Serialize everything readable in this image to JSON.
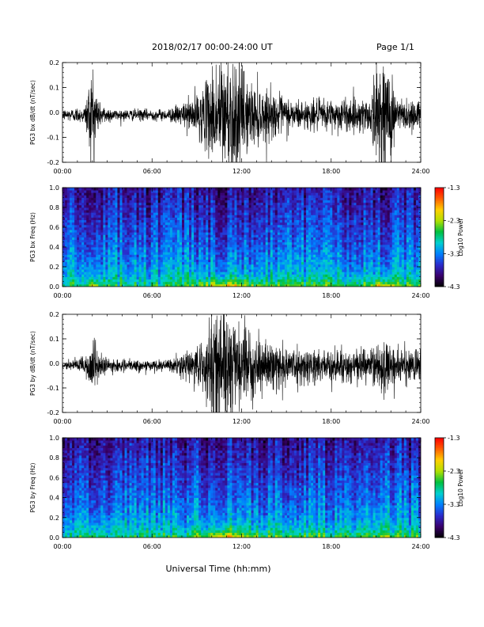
{
  "header": {
    "title": "2018/02/17   00:00-24:00 UT",
    "page": "Page 1/1"
  },
  "xlabel": "Universal Time (hh:mm)",
  "x_ticks": [
    "00:00",
    "06:00",
    "12:00",
    "18:00",
    "24:00"
  ],
  "colors": {
    "waveform": "#000000",
    "axis": "#000000",
    "background": "#ffffff"
  },
  "chart_data": [
    {
      "type": "line",
      "ylabel": "PG3 bx dB/dt (nT/sec)",
      "xlim": [
        0,
        24
      ],
      "ylim": [
        -0.2,
        0.2
      ],
      "y_ticks": [
        "-0.2",
        "-0.1",
        "0.0",
        "0.1",
        "0.2"
      ],
      "x_ticks": [
        "00:00",
        "06:00",
        "12:00",
        "18:00",
        "24:00"
      ],
      "activity_envelope_abs_nT_per_sec": {
        "x_hours": [
          0,
          1.5,
          2.0,
          2.5,
          3.5,
          7.0,
          8.0,
          9.5,
          10.3,
          11.0,
          11.8,
          12.5,
          14.0,
          16.0,
          18.5,
          20.5,
          21.3,
          21.8,
          22.5,
          24
        ],
        "amplitude": [
          0.02,
          0.03,
          0.2,
          0.04,
          0.02,
          0.02,
          0.04,
          0.1,
          0.2,
          0.22,
          0.2,
          0.12,
          0.08,
          0.05,
          0.06,
          0.06,
          0.22,
          0.2,
          0.06,
          0.06
        ]
      }
    },
    {
      "type": "heatmap",
      "ylabel": "PG3 bx Freq (Hz)",
      "xlim": [
        0,
        24
      ],
      "ylim": [
        0.0,
        1.0
      ],
      "y_ticks": [
        "0.0",
        "0.2",
        "0.4",
        "0.6",
        "0.8",
        "1.0"
      ],
      "x_ticks": [
        "00:00",
        "06:00",
        "12:00",
        "18:00",
        "24:00"
      ],
      "colorbar": {
        "label": "Log10 Power",
        "min": -4.3,
        "max": -1.3,
        "ticks": [
          "-1.3",
          "-2.3",
          "-3.3",
          "-4.3"
        ],
        "colormap": [
          "#000000",
          "#3a006b",
          "#2b2bcc",
          "#0080ff",
          "#00d0d0",
          "#00c040",
          "#b0e000",
          "#ffd000",
          "#ff6000",
          "#ff0000"
        ]
      }
    },
    {
      "type": "line",
      "ylabel": "PG3 by dB/dt (nT/sec)",
      "xlim": [
        0,
        24
      ],
      "ylim": [
        -0.2,
        0.2
      ],
      "y_ticks": [
        "-0.2",
        "-0.1",
        "0.0",
        "0.1",
        "0.2"
      ],
      "x_ticks": [
        "00:00",
        "06:00",
        "12:00",
        "18:00",
        "24:00"
      ],
      "activity_envelope_abs_nT_per_sec": {
        "x_hours": [
          0,
          1.5,
          2.0,
          2.5,
          3.5,
          7.0,
          8.0,
          9.5,
          10.3,
          11.0,
          11.8,
          12.5,
          14.0,
          16.0,
          18.5,
          20.5,
          21.3,
          21.8,
          22.5,
          24
        ],
        "amplitude": [
          0.02,
          0.03,
          0.12,
          0.04,
          0.02,
          0.02,
          0.04,
          0.1,
          0.22,
          0.22,
          0.18,
          0.1,
          0.08,
          0.06,
          0.06,
          0.06,
          0.1,
          0.08,
          0.06,
          0.06
        ]
      }
    },
    {
      "type": "heatmap",
      "ylabel": "PG3 by Freq (Hz)",
      "xlim": [
        0,
        24
      ],
      "ylim": [
        0.0,
        1.0
      ],
      "y_ticks": [
        "0.0",
        "0.2",
        "0.4",
        "0.6",
        "0.8",
        "1.0"
      ],
      "x_ticks": [
        "00:00",
        "06:00",
        "12:00",
        "18:00",
        "24:00"
      ],
      "colorbar": {
        "label": "Log10 Power",
        "min": -4.3,
        "max": -1.3,
        "ticks": [
          "-1.3",
          "-2.3",
          "-3.3",
          "-4.3"
        ],
        "colormap": [
          "#000000",
          "#3a006b",
          "#2b2bcc",
          "#0080ff",
          "#00d0d0",
          "#00c040",
          "#b0e000",
          "#ffd000",
          "#ff6000",
          "#ff0000"
        ]
      }
    }
  ]
}
